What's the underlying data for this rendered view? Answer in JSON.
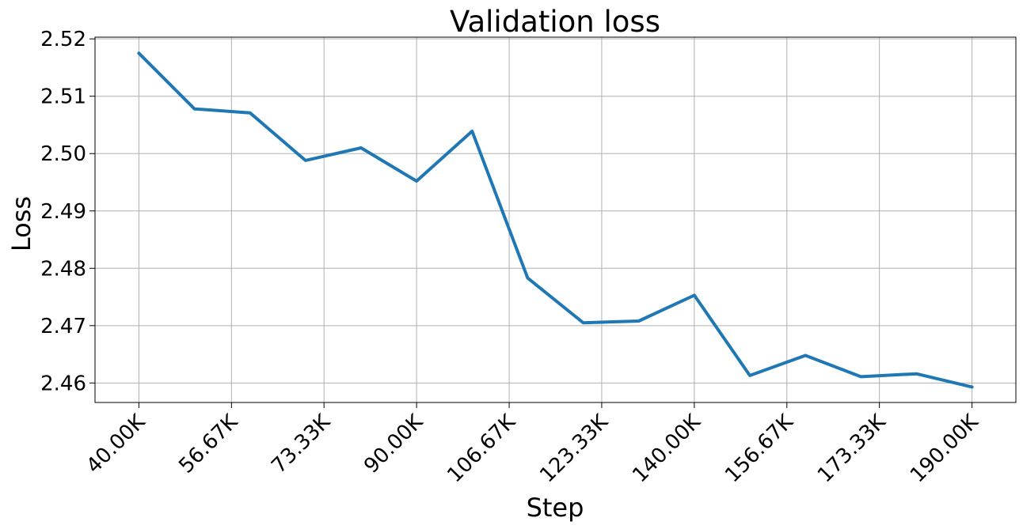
{
  "chart_data": {
    "type": "line",
    "title": "Validation loss",
    "xlabel": "Step",
    "ylabel": "Loss",
    "grid": true,
    "line_color": "#1f77b4",
    "x_ticks": [
      40000,
      56670,
      73330,
      90000,
      106670,
      123330,
      140000,
      156670,
      173330,
      190000
    ],
    "x_tick_labels": [
      "40.00K",
      "56.67K",
      "73.33K",
      "90.00K",
      "106.67K",
      "123.33K",
      "140.00K",
      "156.67K",
      "173.33K",
      "190.00K"
    ],
    "y_ticks": [
      2.46,
      2.47,
      2.48,
      2.49,
      2.5,
      2.51,
      2.52
    ],
    "y_tick_labels": [
      "2.46",
      "2.47",
      "2.48",
      "2.49",
      "2.50",
      "2.51",
      "2.52"
    ],
    "xlim": [
      32100,
      197900
    ],
    "ylim": [
      2.4566,
      2.5203
    ],
    "series": [
      {
        "x": [
          40000,
          50000,
          60000,
          70000,
          80000,
          90000,
          100000,
          110000,
          120000,
          130000,
          140000,
          150000,
          160000,
          170000,
          180000,
          190000
        ],
        "y": [
          2.5175,
          2.5078,
          2.5071,
          2.4988,
          2.501,
          2.4952,
          2.5039,
          2.4783,
          2.4705,
          2.4708,
          2.4753,
          2.4613,
          2.4648,
          2.4611,
          2.4616,
          2.4593
        ]
      }
    ]
  }
}
